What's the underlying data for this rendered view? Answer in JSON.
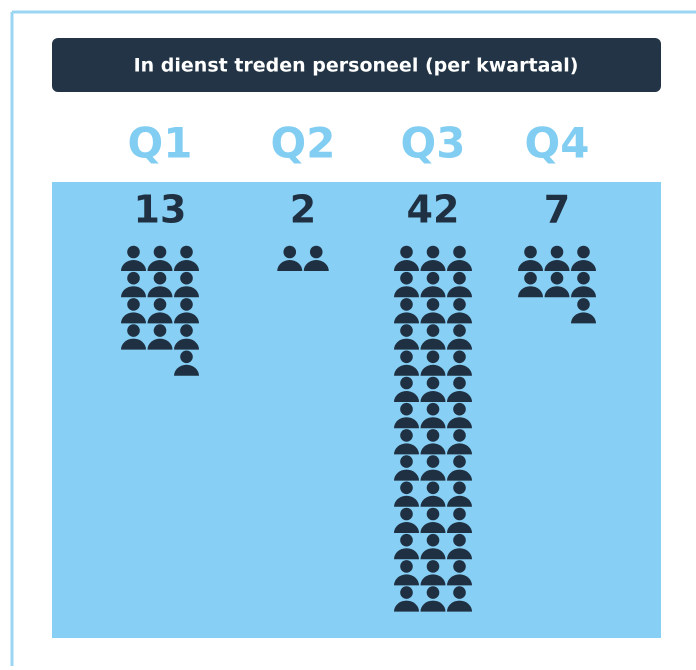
{
  "chart_data": {
    "type": "pictogram",
    "title": "In dienst treden personeel (per kwartaal)",
    "categories": [
      "Q1",
      "Q2",
      "Q3",
      "Q4"
    ],
    "values": [
      13,
      2,
      42,
      7
    ],
    "color": "#1f3042",
    "category_color": "#82cdf2",
    "panel_color": "#87cff4",
    "icons_per_row": 3
  }
}
